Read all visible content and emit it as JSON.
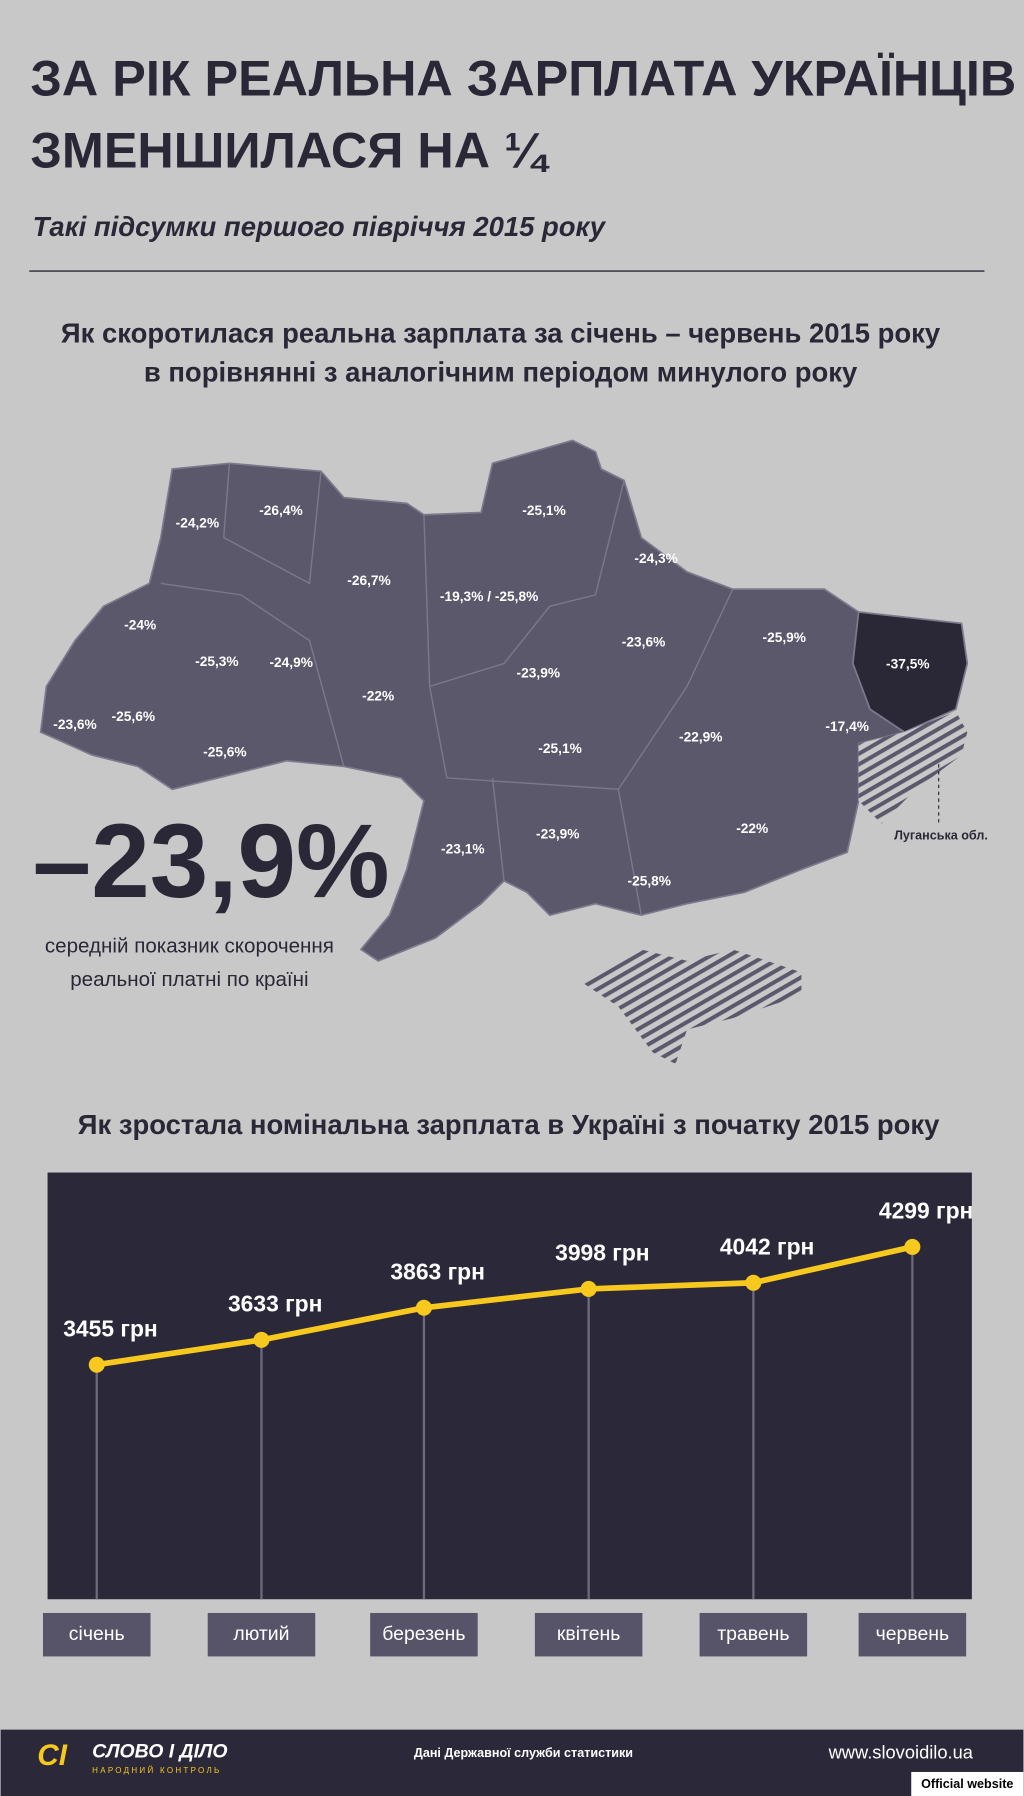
{
  "header": {
    "title_lines": [
      "ЗА РІК РЕАЛЬНА ЗАРПЛАТА УКРАЇНЦІВ",
      "ЗМЕНШИЛАСЯ НА ¼"
    ],
    "subtitle": "Такі підсумки першого півріччя 2015 року"
  },
  "map": {
    "title_lines": [
      "Як скоротилася реальна зарплата за січень – червень 2015 року",
      "в порівнянні з аналогічним періодом минулого року"
    ],
    "region_labels": [
      "-24,2%",
      "-26,4%",
      "-25,1%",
      "-24,3%",
      "-26,7%",
      "-19,3% / -25,8%",
      "-24%",
      "-23,6%",
      "-25,9%",
      "-37,5%",
      "-25,3%",
      "-24,9%",
      "-23,9%",
      "-22%",
      "-23,6%",
      "-25,6%",
      "-25,6%",
      "-17,4%",
      "-22,9%",
      "-25,1%",
      "-23,1%",
      "-23,9%",
      "-22%",
      "-25,8%"
    ],
    "average": "–23,9%",
    "average_caption_lines": [
      "середній показник скорочення",
      "реальної платні по країні"
    ],
    "callout": "Луганська обл."
  },
  "chart_data": {
    "type": "line",
    "title": "Як зростала номінальна зарплата в Україні з початку 2015 року",
    "categories": [
      "січень",
      "лютий",
      "березень",
      "квітень",
      "травень",
      "червень"
    ],
    "values": [
      3455,
      3633,
      3863,
      3998,
      4042,
      4299
    ],
    "value_labels": [
      "3455 грн",
      "3633 грн",
      "3863 грн",
      "3998 грн",
      "4042 грн",
      "4299 грн"
    ],
    "color": "#f7c81e"
  },
  "footer": {
    "logo_mark": "СІ",
    "logo_name": "СЛОВО І ДІЛО",
    "logo_tagline": "НАРОДНИЙ КОНТРОЛЬ",
    "source": "Дані Державної служби статистики",
    "url": "www.slovoidilo.ua",
    "badge": "Official website"
  }
}
